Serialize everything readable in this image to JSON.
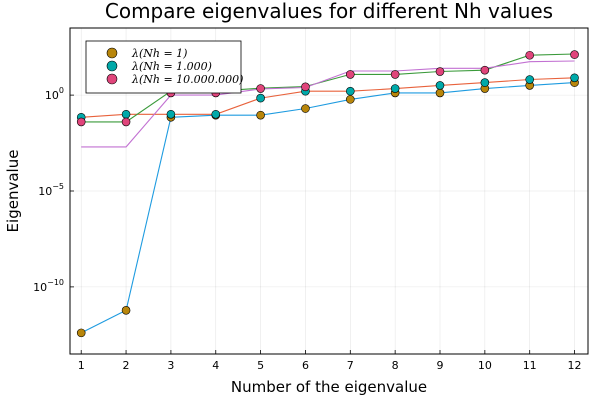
{
  "chart_data": {
    "type": "scatter",
    "title": "Compare eigenvalues for different Nh values",
    "xlabel": "Number of the eigenvalue",
    "ylabel": "Eigenvalue",
    "yscale": "log10",
    "xlim": [
      0.75,
      12.3
    ],
    "ylim_log10": [
      -13.5,
      3.5
    ],
    "grid": true,
    "legend_position": "top-left",
    "x": [
      1,
      2,
      3,
      4,
      5,
      6,
      7,
      8,
      9,
      10,
      11,
      12
    ],
    "xticks": [
      "1",
      "2",
      "3",
      "4",
      "5",
      "6",
      "7",
      "8",
      "9",
      "10",
      "11",
      "12"
    ],
    "yticks": [
      {
        "value": 1,
        "exponent": "0"
      },
      {
        "value": 1e-05,
        "exponent": "−5"
      },
      {
        "value": 1e-10,
        "exponent": "−10"
      }
    ],
    "series": [
      {
        "name": "λ(Nh = 1)",
        "color": "#b8860b",
        "line_color": "#1e9be0",
        "values": [
          4e-13,
          6e-12,
          0.07,
          0.09,
          0.09,
          0.2,
          0.6,
          1.3,
          1.3,
          2.2,
          3.2,
          4.5
        ],
        "line_values": [
          4e-13,
          6e-12,
          0.07,
          0.09,
          0.09,
          0.2,
          0.6,
          1.3,
          1.3,
          2.2,
          3.2,
          4.5
        ]
      },
      {
        "name": "λ(Nh = 1.000)",
        "color": "#00a9a9",
        "line_color": "#e8623c",
        "values": [
          0.07,
          0.1,
          0.1,
          0.1,
          0.7,
          1.6,
          1.6,
          2.2,
          3.2,
          4.5,
          6.5,
          8
        ],
        "line_values": [
          0.07,
          0.1,
          0.1,
          0.1,
          0.7,
          1.6,
          1.6,
          2.2,
          3.2,
          4.5,
          6.5,
          8
        ]
      },
      {
        "name": "λ(Nh = 10.000.000)",
        "color": "#e0457b",
        "line_color": "#3a9a3a",
        "values": [
          0.04,
          0.04,
          1.3,
          1.3,
          2.2,
          2.7,
          12,
          12,
          17,
          20,
          120,
          130
        ],
        "line_values": [
          0.04,
          0.04,
          1.6,
          1.6,
          2.3,
          2.8,
          12,
          12,
          17,
          20,
          120,
          140
        ]
      }
    ],
    "extra_line": {
      "name": "unlabeled series",
      "color": "#c271d2",
      "values": [
        0.002,
        0.002,
        1.0,
        1.0,
        2.1,
        2.5,
        18,
        18,
        25,
        25,
        55,
        60
      ]
    }
  }
}
